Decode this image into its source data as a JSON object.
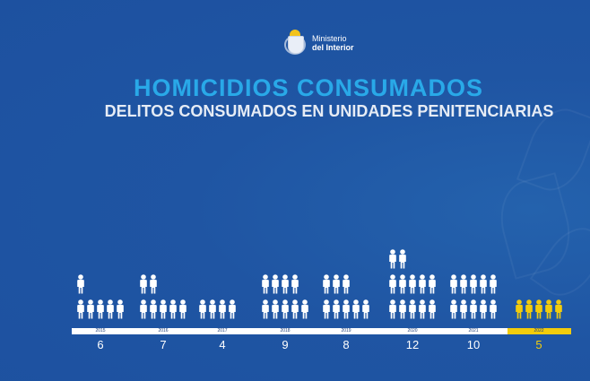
{
  "header": {
    "logo_line1": "Ministerio",
    "logo_line2": "del Interior",
    "title": "HOMICIDIOS CONSUMADOS",
    "subtitle": "DELITOS CONSUMADOS EN UNIDADES PENITENCIARIAS"
  },
  "colors": {
    "background": "#1f55a3",
    "title": "#29a9e8",
    "subtitle": "#e6ecf5",
    "icon": "#ffffff",
    "highlight": "#f2cc0c"
  },
  "chart_data": {
    "type": "bar",
    "title": "HOMICIDIOS CONSUMADOS",
    "subtitle": "DELITOS CONSUMADOS EN UNIDADES PENITENCIARIAS",
    "xlabel": "",
    "ylabel": "",
    "categories": [
      "2015",
      "2016",
      "2017",
      "2018",
      "2019",
      "2020",
      "2021",
      "2022"
    ],
    "values": [
      6,
      7,
      4,
      9,
      8,
      12,
      10,
      5
    ],
    "highlight": "2022",
    "representation": "pictogram (one person icon per homicide, rows of 5)"
  },
  "years": [
    {
      "label": "2015",
      "value": "6"
    },
    {
      "label": "2016",
      "value": "7"
    },
    {
      "label": "2017",
      "value": "4"
    },
    {
      "label": "2018",
      "value": "9"
    },
    {
      "label": "2019",
      "value": "8"
    },
    {
      "label": "2020",
      "value": "12"
    },
    {
      "label": "2021",
      "value": "10"
    },
    {
      "label": "2022",
      "value": "5"
    }
  ]
}
